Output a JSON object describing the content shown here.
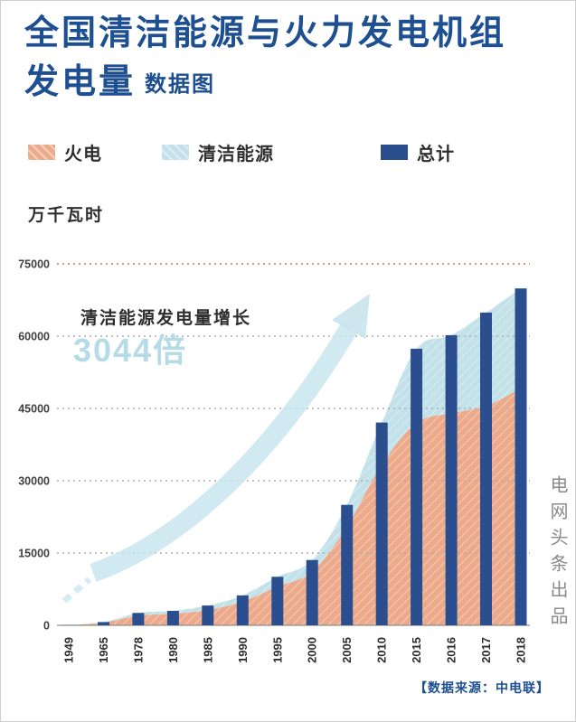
{
  "header": {
    "title_line1": "全国清洁能源与火力发电机组",
    "title_line2": "发电量",
    "subtitle": "数据图"
  },
  "chart_data": {
    "type": "area",
    "title": "全国清洁能源与火力发电机组发电量",
    "unit_label": "万千瓦时",
    "categories": [
      "1949",
      "1965",
      "1978",
      "1980",
      "1985",
      "1990",
      "1995",
      "2000",
      "2005",
      "2010",
      "2015",
      "2016",
      "2017",
      "2018"
    ],
    "series": [
      {
        "name": "火电",
        "render": "area",
        "color": "#ECAA8B",
        "values": [
          36,
          590,
          2000,
          2424,
          3183,
          4950,
          8043,
          11142,
          20473,
          33319,
          42000,
          44000,
          45500,
          49200
        ]
      },
      {
        "name": "清洁能源",
        "render": "area",
        "color": "#C2E1E9",
        "values": [
          7,
          86,
          566,
          582,
          924,
          1262,
          2027,
          2414,
          4530,
          8753,
          15400,
          16200,
          19400,
          20700
        ]
      },
      {
        "name": "总计",
        "render": "bar",
        "color": "#2B4E8E",
        "values": [
          43,
          676,
          2566,
          3006,
          4107,
          6212,
          10070,
          13556,
          25003,
          42072,
          57400,
          60200,
          64900,
          69900
        ]
      }
    ],
    "stacked_areas": true,
    "ylim": [
      0,
      75000
    ],
    "yticks": [
      0,
      15000,
      30000,
      45000,
      60000,
      75000
    ],
    "grid": "horizontal-dotted",
    "legend_position": "top",
    "annotation": {
      "line1": "清洁能源发电量增长",
      "line2": "3044倍"
    }
  },
  "credits": {
    "vertical": "电网头条出品",
    "source": "【数据来源：中电联】"
  },
  "colors": {
    "title": "#1D4F91",
    "arrow": "#C5E3EC",
    "accent_light": "#B5DBE8",
    "grid_top": "#DC7459",
    "grid": "#ADADAD",
    "axis": "#8F8F8F",
    "credit": "#8A8A8A",
    "tick_text": "#2F2F2F"
  }
}
